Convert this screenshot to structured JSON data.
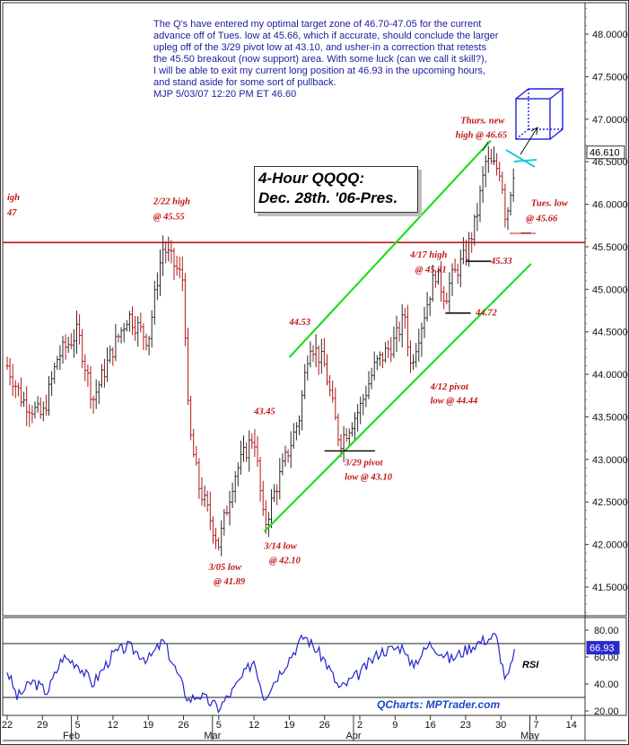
{
  "commentary": {
    "lines": [
      "The Q's have entered my optimal target zone of 46.70-47.05 for the current",
      "advance off of Tues. low at 45.66, which if accurate, should conclude the larger",
      "upleg off of the 3/29 pivot low at 43.10, and usher-in a correction that retests",
      "the 45.50 breakout (now support) area. With some luck (can we call it skill?),",
      "I will be able to exit my current long position at 46.93 in the upcoming hours,",
      "and stand aside for some sort of pullback.",
      "MJP 5/03/07 12:20 PM ET  46.60"
    ]
  },
  "title_box": {
    "line1": "4-Hour QQQQ:",
    "line2": "Dec. 28th. '06-Pres."
  },
  "credit": "QCharts: MPTrader.com",
  "colors": {
    "text_blue": "#1c1ca0",
    "annotation_red": "#c01818",
    "channel_green": "#22dd22",
    "bar_dark": "#2a2a2a",
    "bar_red": "#b01818",
    "rsi_blue": "#2424d0",
    "box_blue": "#2020e0",
    "target_cyan": "#20c8e0"
  },
  "chart_data": [
    {
      "type": "ohlc",
      "name": "4-Hour QQQQ",
      "y_axis": {
        "ticks": [
          "48.0000",
          "47.5000",
          "47.0000",
          "46.5000",
          "46.0000",
          "45.5000",
          "45.0000",
          "44.5000",
          "44.0000",
          "43.5000",
          "43.0000",
          "42.5000",
          "42.0000",
          "41.5000"
        ],
        "ylim": [
          41.2,
          48.3
        ]
      },
      "last_price_label": "46.610",
      "last_price": 46.61,
      "x_axis": {
        "day_ticks": [
          "22",
          "29",
          "5",
          "12",
          "19",
          "26",
          "5",
          "12",
          "19",
          "26",
          "2",
          "9",
          "16",
          "23",
          "30",
          "7",
          "14"
        ],
        "month_labels": [
          "Feb",
          "Mar",
          "Apr",
          "May"
        ],
        "range": [
          "2007-01-22",
          "2007-05-16"
        ]
      },
      "waypoints": [
        {
          "date": "2007-01-22",
          "price": 44.1
        },
        {
          "date": "2007-01-25",
          "price": 43.7
        },
        {
          "date": "2007-01-29",
          "price": 43.5
        },
        {
          "date": "2007-02-01",
          "price": 44.2
        },
        {
          "date": "2007-02-05",
          "price": 44.5
        },
        {
          "date": "2007-02-08",
          "price": 43.7
        },
        {
          "date": "2007-02-12",
          "price": 44.3
        },
        {
          "date": "2007-02-15",
          "price": 44.7
        },
        {
          "date": "2007-02-19",
          "price": 44.4
        },
        {
          "date": "2007-02-21",
          "price": 45.2
        },
        {
          "date": "2007-02-22",
          "price": 45.5
        },
        {
          "date": "2007-02-26",
          "price": 45.1
        },
        {
          "date": "2007-02-27",
          "price": 43.4
        },
        {
          "date": "2007-03-01",
          "price": 42.7
        },
        {
          "date": "2007-03-05",
          "price": 42.0
        },
        {
          "date": "2007-03-08",
          "price": 42.8
        },
        {
          "date": "2007-03-12",
          "price": 43.3
        },
        {
          "date": "2007-03-14",
          "price": 42.2
        },
        {
          "date": "2007-03-16",
          "price": 42.6
        },
        {
          "date": "2007-03-21",
          "price": 43.5
        },
        {
          "date": "2007-03-23",
          "price": 44.4
        },
        {
          "date": "2007-03-26",
          "price": 44.1
        },
        {
          "date": "2007-03-29",
          "price": 43.2
        },
        {
          "date": "2007-04-02",
          "price": 43.6
        },
        {
          "date": "2007-04-05",
          "price": 44.1
        },
        {
          "date": "2007-04-09",
          "price": 44.4
        },
        {
          "date": "2007-04-11",
          "price": 44.7
        },
        {
          "date": "2007-04-12",
          "price": 44.1
        },
        {
          "date": "2007-04-17",
          "price": 45.2
        },
        {
          "date": "2007-04-19",
          "price": 44.9
        },
        {
          "date": "2007-04-20",
          "price": 45.1
        },
        {
          "date": "2007-04-23",
          "price": 45.4
        },
        {
          "date": "2007-04-25",
          "price": 45.8
        },
        {
          "date": "2007-04-27",
          "price": 46.5
        },
        {
          "date": "2007-04-30",
          "price": 46.4
        },
        {
          "date": "2007-05-01",
          "price": 45.8
        },
        {
          "date": "2007-05-02",
          "price": 46.2
        },
        {
          "date": "2007-05-03",
          "price": 46.6
        }
      ],
      "resistance_line": {
        "price": 45.55
      },
      "channel_lines": [
        {
          "from": {
            "date": "2007-03-14",
            "price": 42.15
          },
          "to": {
            "date": "2007-05-06",
            "price": 45.3
          }
        },
        {
          "from": {
            "date": "2007-03-19",
            "price": 44.2
          },
          "to": {
            "date": "2007-04-28",
            "price": 46.75
          }
        }
      ],
      "pivot_marks": [
        {
          "from": {
            "date": "2007-03-26",
            "price": 43.1
          },
          "to": {
            "date": "2007-04-05",
            "price": 43.1
          }
        },
        {
          "from": {
            "date": "2007-04-19",
            "price": 44.72
          },
          "to": {
            "date": "2007-04-24",
            "price": 44.72
          }
        },
        {
          "from": {
            "date": "2007-04-23",
            "price": 45.33
          },
          "to": {
            "date": "2007-04-28",
            "price": 45.33
          }
        },
        {
          "from": {
            "date": "2007-05-04",
            "price": 45.66
          },
          "to": {
            "date": "2007-05-06",
            "price": 45.66
          }
        }
      ],
      "annotations": [
        {
          "text": "2/22 high",
          "date": "2007-02-20",
          "price": 46.0
        },
        {
          "text": "@ 45.55",
          "date": "2007-02-20",
          "price": 45.82
        },
        {
          "text": "igh",
          "date": "2007-01-22",
          "price": 46.05
        },
        {
          "text": "47",
          "date": "2007-01-22",
          "price": 45.87
        },
        {
          "text": "Thurs. new",
          "date": "2007-04-22",
          "price": 46.95
        },
        {
          "text": "high @ 46.65",
          "date": "2007-04-21",
          "price": 46.78
        },
        {
          "text": "Tues. low",
          "date": "2007-05-06",
          "price": 45.98
        },
        {
          "text": "@ 45.66",
          "date": "2007-05-05",
          "price": 45.8
        },
        {
          "text": "4/17 high",
          "date": "2007-04-12",
          "price": 45.37
        },
        {
          "text": "@ 45.31",
          "date": "2007-04-13",
          "price": 45.2
        },
        {
          "text": "45.33",
          "date": "2007-04-28",
          "price": 45.3
        },
        {
          "text": "44.72",
          "date": "2007-04-25",
          "price": 44.69
        },
        {
          "text": "44.53",
          "date": "2007-03-19",
          "price": 44.58
        },
        {
          "text": "4/12 pivot",
          "date": "2007-04-16",
          "price": 43.82
        },
        {
          "text": "low @ 44.44",
          "date": "2007-04-16",
          "price": 43.66
        },
        {
          "text": "43.45",
          "date": "2007-03-12",
          "price": 43.53
        },
        {
          "text": "3/29 pivot",
          "date": "2007-03-30",
          "price": 42.93
        },
        {
          "text": "low @ 43.10",
          "date": "2007-03-30",
          "price": 42.76
        },
        {
          "text": "3/14 low",
          "date": "2007-03-14",
          "price": 41.95
        },
        {
          "text": "@ 42.10",
          "date": "2007-03-15",
          "price": 41.78
        },
        {
          "text": "3/05 low",
          "date": "2007-03-03",
          "price": 41.7
        },
        {
          "text": "@ 41.89",
          "date": "2007-03-04",
          "price": 41.53
        }
      ]
    },
    {
      "type": "line",
      "name": "RSI",
      "label": "RSI",
      "ylim": [
        18,
        88
      ],
      "ticks": [
        "80.00",
        "60.00",
        "40.00",
        "20.00"
      ],
      "reference_levels": [
        70,
        30
      ],
      "last_value_label": "66.93",
      "waypoints": [
        {
          "date": "2007-01-22",
          "value": 50
        },
        {
          "date": "2007-01-24",
          "value": 30
        },
        {
          "date": "2007-01-27",
          "value": 42
        },
        {
          "date": "2007-01-30",
          "value": 34
        },
        {
          "date": "2007-02-02",
          "value": 60
        },
        {
          "date": "2007-02-05",
          "value": 55
        },
        {
          "date": "2007-02-08",
          "value": 40
        },
        {
          "date": "2007-02-12",
          "value": 62
        },
        {
          "date": "2007-02-15",
          "value": 68
        },
        {
          "date": "2007-02-19",
          "value": 58
        },
        {
          "date": "2007-02-22",
          "value": 72
        },
        {
          "date": "2007-02-27",
          "value": 28
        },
        {
          "date": "2007-03-01",
          "value": 32
        },
        {
          "date": "2007-03-05",
          "value": 22
        },
        {
          "date": "2007-03-08",
          "value": 36
        },
        {
          "date": "2007-03-12",
          "value": 58
        },
        {
          "date": "2007-03-14",
          "value": 30
        },
        {
          "date": "2007-03-17",
          "value": 48
        },
        {
          "date": "2007-03-22",
          "value": 76
        },
        {
          "date": "2007-03-26",
          "value": 58
        },
        {
          "date": "2007-03-29",
          "value": 36
        },
        {
          "date": "2007-04-02",
          "value": 48
        },
        {
          "date": "2007-04-06",
          "value": 64
        },
        {
          "date": "2007-04-11",
          "value": 68
        },
        {
          "date": "2007-04-12",
          "value": 52
        },
        {
          "date": "2007-04-16",
          "value": 70
        },
        {
          "date": "2007-04-20",
          "value": 58
        },
        {
          "date": "2007-04-25",
          "value": 70
        },
        {
          "date": "2007-04-29",
          "value": 76
        },
        {
          "date": "2007-05-01",
          "value": 42
        },
        {
          "date": "2007-05-02",
          "value": 52
        },
        {
          "date": "2007-05-03",
          "value": 67
        }
      ]
    }
  ]
}
